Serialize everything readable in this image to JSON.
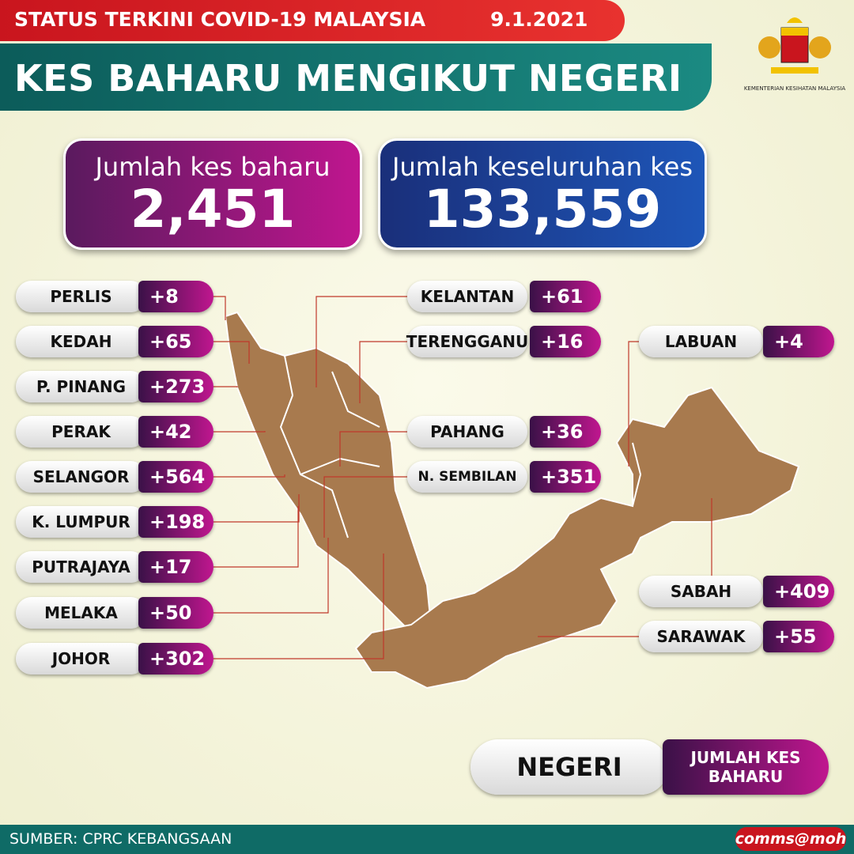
{
  "header": {
    "status": "STATUS TERKINI COVID-19 MALAYSIA",
    "date": "9.1.2021",
    "title": "KES BAHARU MENGIKUT NEGERI",
    "ministry": "KEMENTERIAN KESIHATAN MALAYSIA"
  },
  "totals": [
    {
      "label": "Jumlah kes baharu",
      "value": "2,451"
    },
    {
      "label": "Jumlah keseluruhan kes",
      "value": "133,559"
    }
  ],
  "states": [
    {
      "name": "PERLIS",
      "cases": "+8"
    },
    {
      "name": "KEDAH",
      "cases": "+65"
    },
    {
      "name": "P. PINANG",
      "cases": "+273"
    },
    {
      "name": "PERAK",
      "cases": "+42"
    },
    {
      "name": "SELANGOR",
      "cases": "+564"
    },
    {
      "name": "K. LUMPUR",
      "cases": "+198"
    },
    {
      "name": "PUTRAJAYA",
      "cases": "+17"
    },
    {
      "name": "MELAKA",
      "cases": "+50"
    },
    {
      "name": "JOHOR",
      "cases": "+302"
    },
    {
      "name": "KELANTAN",
      "cases": "+61"
    },
    {
      "name": "TERENGGANU",
      "cases": "+16"
    },
    {
      "name": "PAHANG",
      "cases": "+36"
    },
    {
      "name": "N. SEMBILAN",
      "cases": "+351"
    },
    {
      "name": "LABUAN",
      "cases": "+4"
    },
    {
      "name": "SABAH",
      "cases": "+409"
    },
    {
      "name": "SARAWAK",
      "cases": "+55"
    }
  ],
  "legend": {
    "state": "NEGERI",
    "cases": "JUMLAH KES BAHARU"
  },
  "footer": {
    "source": "SUMBER: CPRC KEBANGSAAN",
    "brand": "comms@moh"
  }
}
